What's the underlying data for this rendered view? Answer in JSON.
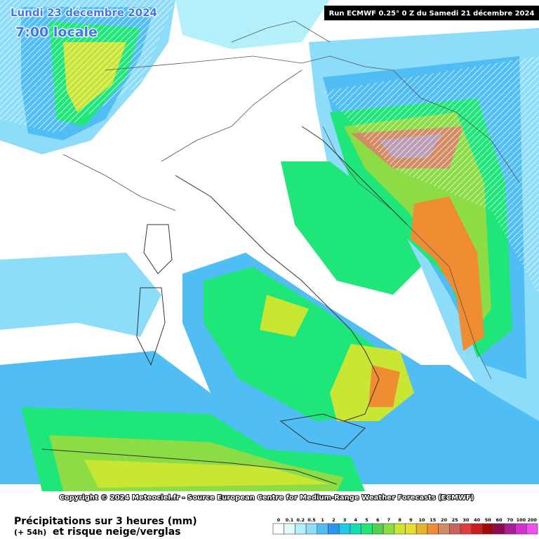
{
  "header": {
    "date": "Lundi 23 décembre 2024",
    "time": "7:00 locale",
    "run": "Run ECMWF 0.25° 0 Z du Samedi 21 décembre 2024"
  },
  "copyright": "Copyright © 2024 Meteociel.fr - Source European Centre for Medium-Range Weather Forecasts (ECMWF)",
  "footer": {
    "title": "Précipitations sur 3 heures (mm)",
    "lead": "(+ 54h)",
    "subtitle": "et risque neige/verglas"
  },
  "legend": [
    {
      "label": "0",
      "color": "#ffffff"
    },
    {
      "label": "0.1",
      "color": "#e1fafa"
    },
    {
      "label": "0.2",
      "color": "#b4f0fa"
    },
    {
      "label": "0.5",
      "color": "#8cdcfa"
    },
    {
      "label": "1",
      "color": "#50bef5"
    },
    {
      "label": "2",
      "color": "#2896f0"
    },
    {
      "label": "3",
      "color": "#1ec8e6"
    },
    {
      "label": "4",
      "color": "#14dcb4"
    },
    {
      "label": "5",
      "color": "#1ee678"
    },
    {
      "label": "6",
      "color": "#50d250"
    },
    {
      "label": "7",
      "color": "#8cdc46"
    },
    {
      "label": "8",
      "color": "#c8e632"
    },
    {
      "label": "9",
      "color": "#e6dc32"
    },
    {
      "label": "10",
      "color": "#e6b42d"
    },
    {
      "label": "15",
      "color": "#f08c32"
    },
    {
      "label": "20",
      "color": "#d28c64"
    },
    {
      "label": "25",
      "color": "#c8645a"
    },
    {
      "label": "30",
      "color": "#e13c3c"
    },
    {
      "label": "40",
      "color": "#c81e1e"
    },
    {
      "label": "50",
      "color": "#a00a0a"
    },
    {
      "label": "60",
      "color": "#8c0a50"
    },
    {
      "label": "70",
      "color": "#aa1e96"
    },
    {
      "label": "100",
      "color": "#d232d2"
    },
    {
      "label": "200",
      "color": "#f050f0"
    }
  ]
}
